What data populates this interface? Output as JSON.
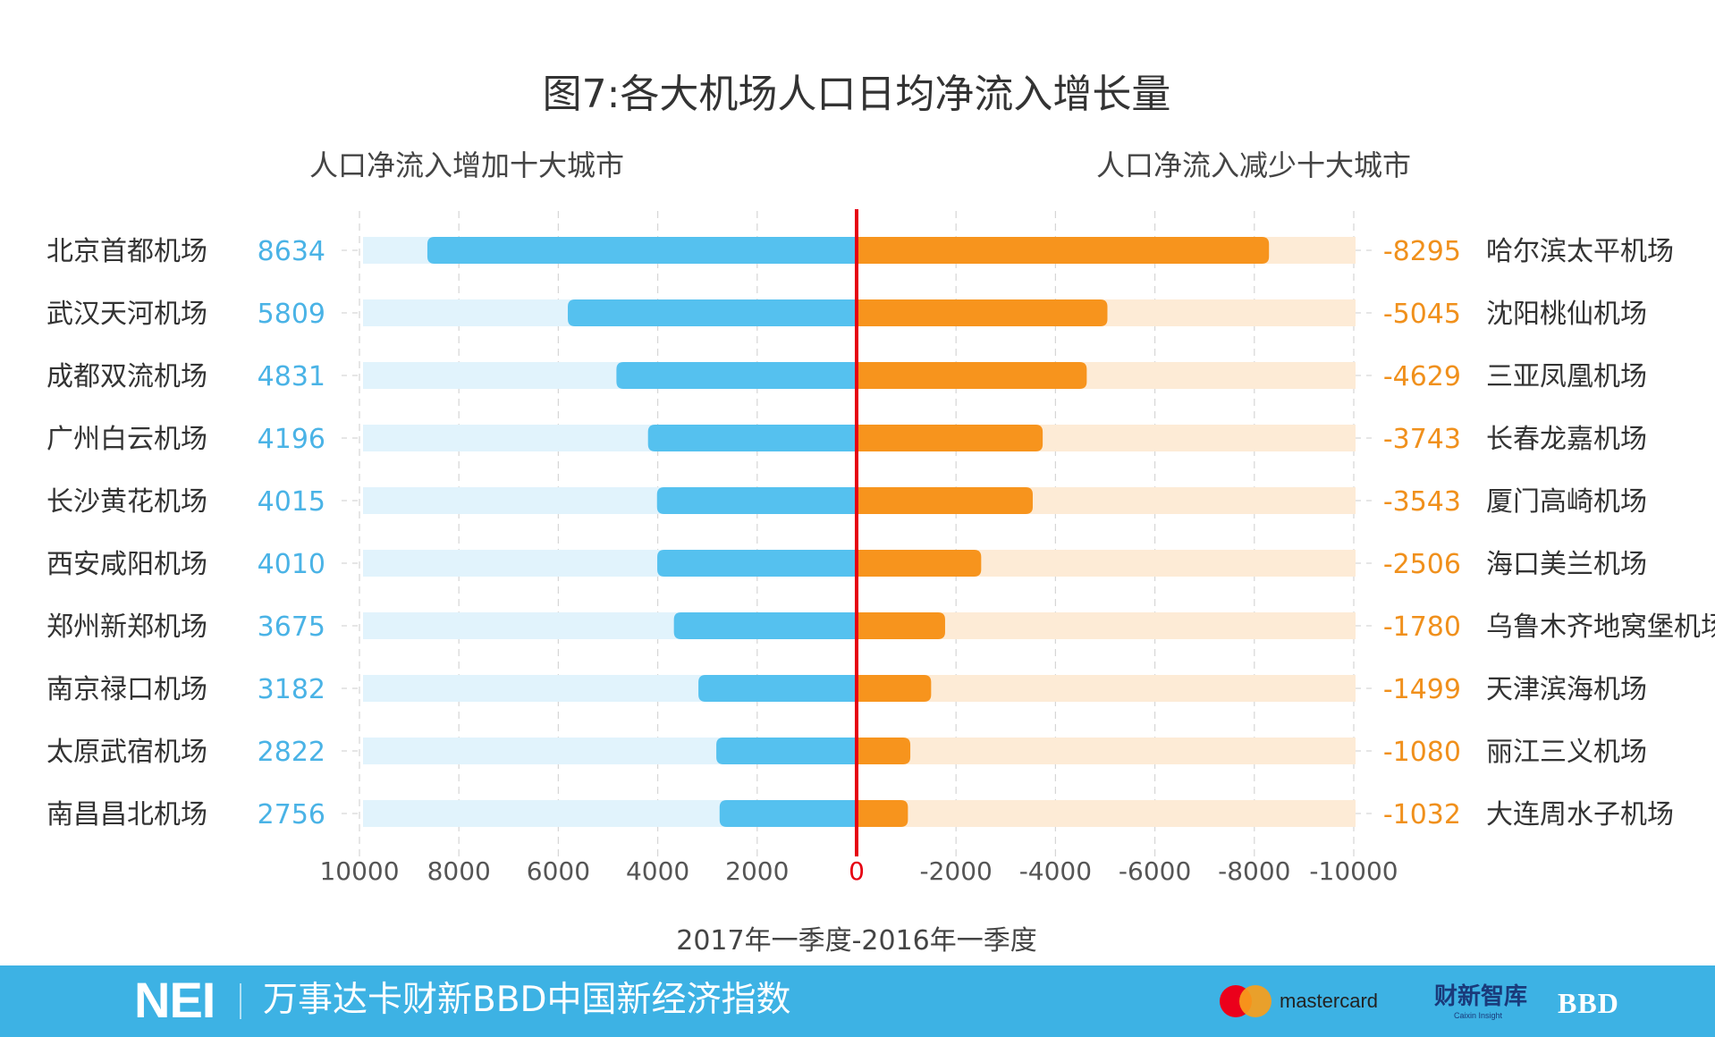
{
  "chart_data": {
    "type": "bar",
    "title": "图7:各大机场人口日均净流入增长量",
    "xlabel": "2017年一季度-2016年一季度",
    "xlim": [
      10000,
      -10000
    ],
    "x_ticks": [
      "10000",
      "8000",
      "6000",
      "4000",
      "2000",
      "0",
      "-2000",
      "-4000",
      "-6000",
      "-8000",
      "-10000"
    ],
    "grid": true,
    "left_panel": {
      "subtitle": "人口净流入增加十大城市",
      "color": "#55c1ef",
      "track_color": "#e1f3fc",
      "label_color": "#4ab3e6",
      "categories": [
        "北京首都机场",
        "武汉天河机场",
        "成都双流机场",
        "广州白云机场",
        "长沙黄花机场",
        "西安咸阳机场",
        "郑州新郑机场",
        "南京禄口机场",
        "太原武宿机场",
        "南昌昌北机场"
      ],
      "values": [
        8634,
        5809,
        4831,
        4196,
        4015,
        4010,
        3675,
        3182,
        2822,
        2756
      ]
    },
    "right_panel": {
      "subtitle": "人口净流入减少十大城市",
      "color": "#f7941d",
      "track_color": "#fdebd6",
      "label_color": "#f0901c",
      "categories": [
        "哈尔滨太平机场",
        "沈阳桃仙机场",
        "三亚凤凰机场",
        "长春龙嘉机场",
        "厦门高崎机场",
        "海口美兰机场",
        "乌鲁木齐地窝堡机场",
        "天津滨海机场",
        "丽江三义机场",
        "大连周水子机场"
      ],
      "values": [
        -8295,
        -5045,
        -4629,
        -3743,
        -3543,
        -2506,
        -1780,
        -1499,
        -1080,
        -1032
      ]
    },
    "zero_line_color": "#e60012"
  },
  "footer": {
    "logo": "NEI",
    "name": "万事达卡财新BBD中国新经济指数",
    "mastercard": "mastercard",
    "caixin": "财新智库",
    "caixin_sub": "Caixin Insight",
    "bbd": "BBD",
    "bar_color": "#3db2e4"
  }
}
